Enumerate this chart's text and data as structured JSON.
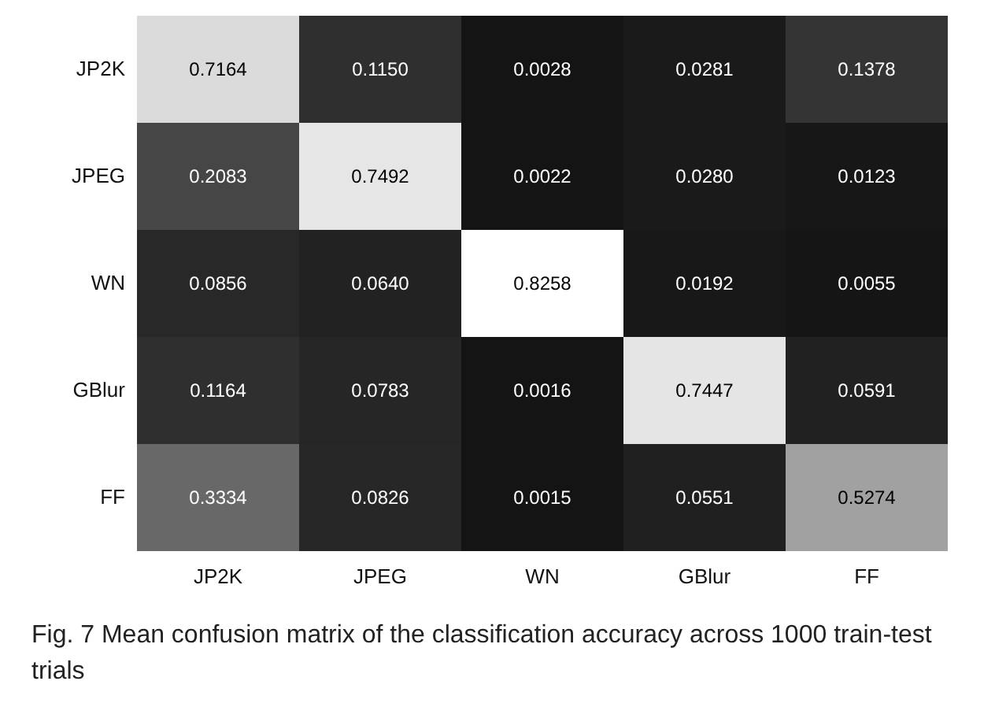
{
  "chart_data": {
    "type": "heatmap",
    "categories": [
      "JP2K",
      "JPEG",
      "WN",
      "GBlur",
      "FF"
    ],
    "y_categories": [
      "JP2K",
      "JPEG",
      "WN",
      "GBlur",
      "FF"
    ],
    "cells": [
      [
        0.7164,
        0.115,
        0.0028,
        0.0281,
        0.1378
      ],
      [
        0.2083,
        0.7492,
        0.0022,
        0.028,
        0.0123
      ],
      [
        0.0856,
        0.064,
        0.8258,
        0.0192,
        0.0055
      ],
      [
        0.1164,
        0.0783,
        0.0016,
        0.7447,
        0.0591
      ],
      [
        0.3334,
        0.0826,
        0.0015,
        0.0551,
        0.5274
      ]
    ],
    "cell_labels": [
      [
        "0.7164",
        "0.1150",
        "0.0028",
        "0.0281",
        "0.1378"
      ],
      [
        "0.2083",
        "0.7492",
        "0.0022",
        "0.0280",
        "0.0123"
      ],
      [
        "0.0856",
        "0.0640",
        "0.8258",
        "0.0192",
        "0.0055"
      ],
      [
        "0.1164",
        "0.0783",
        "0.0016",
        "0.7447",
        "0.0591"
      ],
      [
        "0.3334",
        "0.0826",
        "0.0015",
        "0.0551",
        "0.5274"
      ]
    ],
    "annotations": [
      "Fig. 7 Mean confusion matrix of the classification accuracy across 1000 train-test trials"
    ]
  }
}
